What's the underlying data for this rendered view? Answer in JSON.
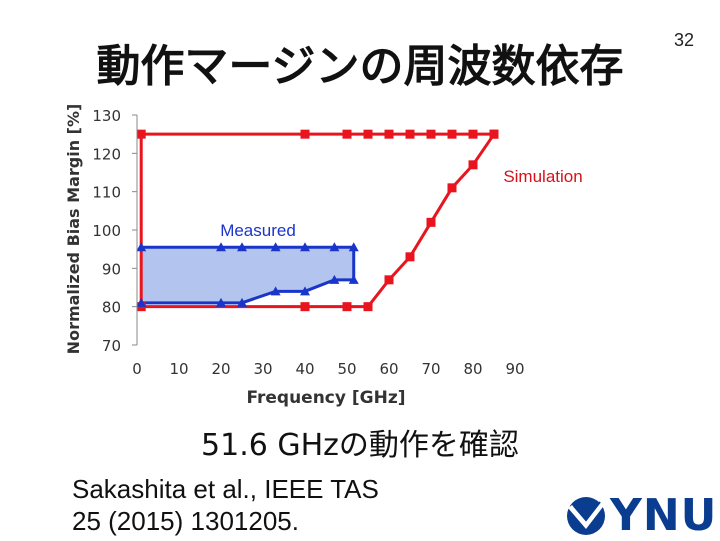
{
  "slide": {
    "title": "動作マージンの周波数依存",
    "page_number": "32",
    "caption": "51.6 GHzの動作を確認",
    "reference_line1": "Sakashita et al., IEEE TAS",
    "reference_line2": "25 (2015) 1301205.",
    "logo_text": "YNU",
    "brand_color": "#0a3d8f"
  },
  "chart_data": {
    "type": "line",
    "xlabel": "Frequency [GHz]",
    "ylabel": "Normalized Bias Margin [%]",
    "xlim": [
      0,
      90
    ],
    "ylim": [
      70,
      130
    ],
    "xticks": [
      0,
      10,
      20,
      30,
      40,
      50,
      60,
      70,
      80,
      90
    ],
    "yticks": [
      70,
      80,
      90,
      100,
      110,
      120,
      130
    ],
    "grid": false,
    "series": [
      {
        "name": "Simulation",
        "color": "#e8141e",
        "marker": "square",
        "upper": [
          [
            1,
            125
          ],
          [
            40,
            125
          ],
          [
            50,
            125
          ],
          [
            55,
            125
          ],
          [
            60,
            125
          ],
          [
            65,
            125
          ],
          [
            70,
            125
          ],
          [
            75,
            125
          ],
          [
            80,
            125
          ],
          [
            85,
            125
          ]
        ],
        "lower": [
          [
            1,
            80
          ],
          [
            40,
            80
          ],
          [
            50,
            80
          ],
          [
            55,
            80
          ],
          [
            60,
            87
          ],
          [
            65,
            93
          ],
          [
            70,
            102
          ],
          [
            75,
            111
          ],
          [
            80,
            117
          ],
          [
            85,
            125
          ]
        ]
      },
      {
        "name": "Measured",
        "color": "#1a35c9",
        "fill": "#b3c5ef",
        "marker": "triangle",
        "upper": [
          [
            1,
            95.5
          ],
          [
            20,
            95.5
          ],
          [
            25,
            95.5
          ],
          [
            33,
            95.5
          ],
          [
            40,
            95.5
          ],
          [
            47,
            95.5
          ],
          [
            51.6,
            95.5
          ]
        ],
        "lower": [
          [
            1,
            81
          ],
          [
            20,
            81
          ],
          [
            25,
            81
          ],
          [
            33,
            84
          ],
          [
            40,
            84
          ],
          [
            47,
            87
          ],
          [
            51.6,
            87
          ]
        ]
      }
    ]
  }
}
